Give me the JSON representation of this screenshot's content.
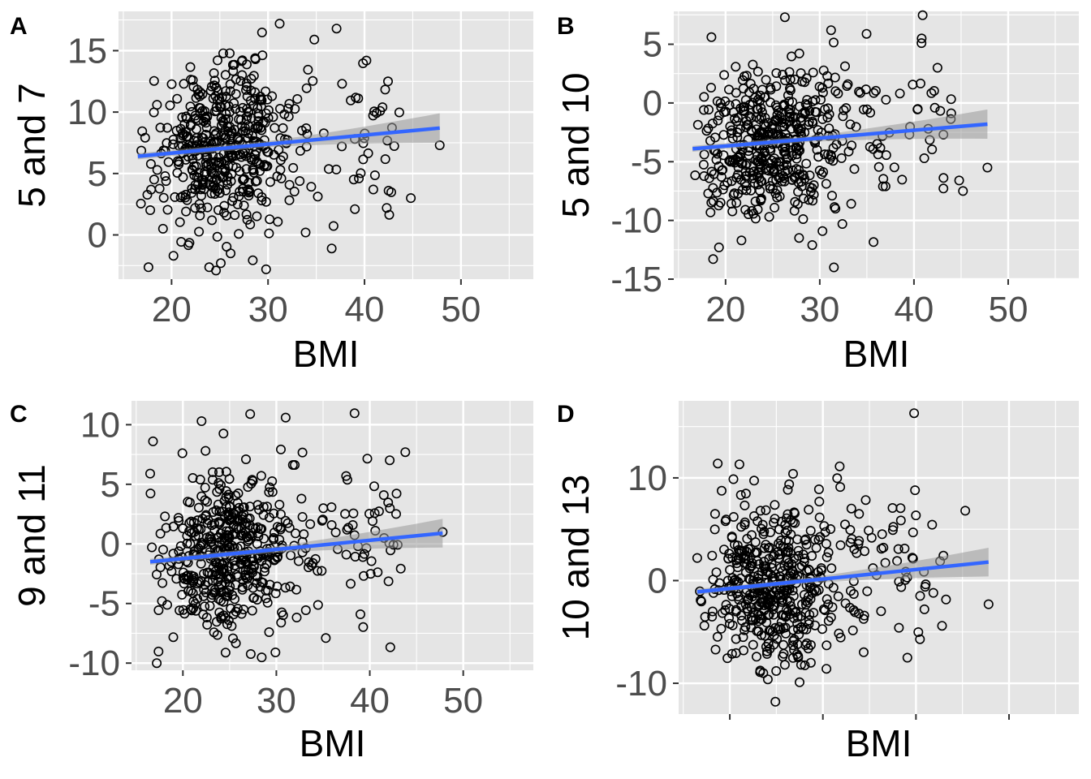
{
  "figure": {
    "background": "#ffffff",
    "panel_background": "#e5e5e5",
    "grid_color": "#ffffff",
    "point_stroke": "#000000",
    "fit_line_color": "#3366ff",
    "ci_band_color": "#999999"
  },
  "chart_data": [
    {
      "tag": "A",
      "type": "scatter",
      "title": "",
      "xlabel": "BMI",
      "ylabel": "5 and 7",
      "xlim": [
        14.5,
        57.5
      ],
      "ylim": [
        -3.6,
        18.2
      ],
      "x_ticks": [
        20,
        30,
        40,
        50
      ],
      "x_tick_labels": [
        "20",
        "30",
        "40",
        "50"
      ],
      "y_ticks": [
        0,
        5,
        10,
        15
      ],
      "y_tick_labels": [
        "0",
        "5",
        "10",
        "15"
      ],
      "grid": true,
      "n_points": 520,
      "fit": {
        "x": [
          16.5,
          47.8
        ],
        "y": [
          6.4,
          8.7
        ],
        "ci_lower_end": [
          6.0,
          7.5
        ],
        "ci_upper_end": [
          6.8,
          9.9
        ]
      },
      "x_center": 24.5,
      "x_spread": 4.6,
      "y_spread": 3.3,
      "outliers": [
        [
          31.2,
          17.2
        ],
        [
          37.1,
          16.8
        ],
        [
          34.8,
          15.9
        ],
        [
          28.7,
          14.3
        ],
        [
          44.8,
          3.0
        ],
        [
          47.8,
          7.3
        ],
        [
          36.6,
          -1.1
        ],
        [
          29.8,
          -2.8
        ],
        [
          20.2,
          -1.7
        ],
        [
          25.1,
          -2.3
        ],
        [
          33.9,
          0.2
        ],
        [
          39.0,
          2.1
        ],
        [
          42.5,
          3.6
        ],
        [
          40.2,
          14.2
        ]
      ]
    },
    {
      "tag": "B",
      "type": "scatter",
      "title": "",
      "xlabel": "BMI",
      "ylabel": "5 and 10",
      "xlim": [
        14.5,
        57.5
      ],
      "ylim": [
        -15.0,
        7.8
      ],
      "x_ticks": [
        20,
        30,
        40,
        50
      ],
      "x_tick_labels": [
        "20",
        "30",
        "40",
        "50"
      ],
      "y_ticks": [
        -15,
        -10,
        -5,
        0,
        5
      ],
      "y_tick_labels": [
        "-15",
        "-10",
        "-5",
        "0",
        "5"
      ],
      "grid": true,
      "n_points": 520,
      "fit": {
        "x": [
          16.5,
          47.8
        ],
        "y": [
          -3.9,
          -1.8
        ],
        "ci_lower_end": [
          -4.4,
          -3.1
        ],
        "ci_upper_end": [
          -3.4,
          -0.6
        ]
      },
      "x_center": 24.5,
      "x_spread": 4.6,
      "y_spread": 3.3,
      "outliers": [
        [
          26.3,
          7.3
        ],
        [
          31.2,
          6.2
        ],
        [
          40.8,
          5.1
        ],
        [
          18.5,
          5.6
        ],
        [
          31.5,
          -14.0
        ],
        [
          29.2,
          -12.1
        ],
        [
          19.3,
          -12.3
        ],
        [
          44.8,
          -6.6
        ],
        [
          47.8,
          -5.5
        ],
        [
          45.2,
          -7.5
        ],
        [
          42.5,
          3.0
        ],
        [
          32.4,
          -10.3
        ]
      ]
    },
    {
      "tag": "C",
      "type": "scatter",
      "title": "",
      "xlabel": "BMI",
      "ylabel": "9 and 11",
      "xlim": [
        14.5,
        57.5
      ],
      "ylim": [
        -10.6,
        12.0
      ],
      "x_ticks": [
        20,
        30,
        40,
        50
      ],
      "x_tick_labels": [
        "20",
        "30",
        "40",
        "50"
      ],
      "y_ticks": [
        -10,
        -5,
        0,
        5,
        10
      ],
      "y_tick_labels": [
        "-10",
        "-5",
        "0",
        "5",
        "10"
      ],
      "grid": true,
      "n_points": 520,
      "fit": {
        "x": [
          16.5,
          47.8
        ],
        "y": [
          -1.5,
          0.9
        ],
        "ci_lower_end": [
          -2.0,
          -0.3
        ],
        "ci_upper_end": [
          -1.0,
          2.1
        ]
      },
      "x_center": 24.5,
      "x_spread": 4.6,
      "y_spread": 3.4,
      "outliers": [
        [
          27.2,
          10.9
        ],
        [
          31.0,
          10.6
        ],
        [
          22.0,
          10.3
        ],
        [
          17.2,
          -10.0
        ],
        [
          29.9,
          -9.1
        ],
        [
          35.3,
          -7.9
        ],
        [
          43.8,
          7.7
        ],
        [
          47.8,
          1.0
        ],
        [
          16.8,
          8.6
        ],
        [
          16.5,
          5.9
        ],
        [
          39.0,
          -5.9
        ],
        [
          41.5,
          4.1
        ]
      ]
    },
    {
      "tag": "D",
      "type": "scatter",
      "title": "",
      "xlabel": "BMI",
      "ylabel": "10 and 13",
      "xlim": [
        14.5,
        57.5
      ],
      "ylim": [
        -13.0,
        17.5
      ],
      "x_ticks": [
        20,
        30,
        40,
        50
      ],
      "x_tick_labels": [],
      "y_ticks": [
        -10,
        0,
        10
      ],
      "y_tick_labels": [
        "-10",
        "0",
        "10"
      ],
      "grid": true,
      "n_points": 520,
      "fit": {
        "x": [
          16.5,
          47.8
        ],
        "y": [
          -1.1,
          1.8
        ],
        "ci_lower_end": [
          -1.7,
          0.4
        ],
        "ci_upper_end": [
          -0.5,
          3.2
        ]
      },
      "x_center": 24.5,
      "x_spread": 4.6,
      "y_spread": 3.9,
      "outliers": [
        [
          39.8,
          16.3
        ],
        [
          39.9,
          8.8
        ],
        [
          24.9,
          -11.8
        ],
        [
          27.5,
          -9.9
        ],
        [
          47.8,
          -2.3
        ],
        [
          42.8,
          -4.4
        ],
        [
          18.7,
          11.4
        ],
        [
          26.8,
          10.4
        ],
        [
          45.3,
          6.8
        ],
        [
          16.5,
          2.2
        ]
      ]
    }
  ]
}
